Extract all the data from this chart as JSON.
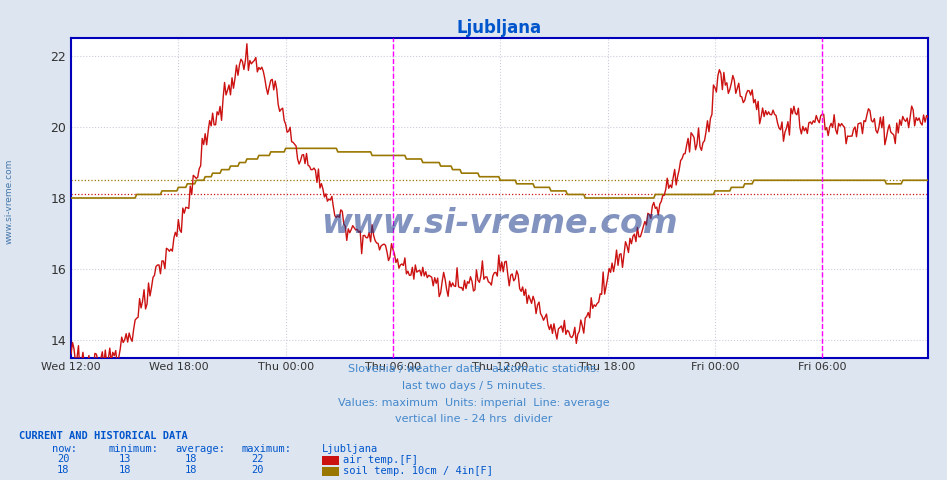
{
  "title": "Ljubljana",
  "title_color": "#0055cc",
  "bg_color": "#dde5f0",
  "plot_bg_color": "#ffffff",
  "ylim": [
    13.5,
    22.5
  ],
  "yticks": [
    14,
    16,
    18,
    20,
    22
  ],
  "xlabel_ticks": [
    "Wed 12:00",
    "Wed 18:00",
    "Thu 00:00",
    "Thu 06:00",
    "Thu 12:00",
    "Thu 18:00",
    "Fri 00:00",
    "Fri 06:00"
  ],
  "air_temp_color": "#cc1111",
  "soil_temp_color": "#997700",
  "avg_air_temp": 18.1,
  "avg_soil_temp": 18.5,
  "axis_color": "#0000bb",
  "grid_color": "#ccccdd",
  "divider_color": "#aaaaaa",
  "magenta_color": "#ff00ff",
  "watermark_color": "#1a3a8a",
  "subtitle1": "Slovenia / weather data - automatic stations.",
  "subtitle2": "last two days / 5 minutes.",
  "subtitle3": "Values: maximum  Units: imperial  Line: average",
  "subtitle4": "vertical line - 24 hrs  divider",
  "subtitle_color": "#4488cc",
  "legend_header": "Ljubljana",
  "label1": "air temp.[F]",
  "label2": "soil temp. 10cm / 4in[F]",
  "footer_header": "CURRENT AND HISTORICAL DATA",
  "footer_color": "#0055cc",
  "footer_cols": [
    "now:",
    "minimum:",
    "average:",
    "maximum:"
  ],
  "footer_row1": [
    "20",
    "13",
    "18",
    "22"
  ],
  "footer_row2": [
    "18",
    "18",
    "18",
    "20"
  ]
}
